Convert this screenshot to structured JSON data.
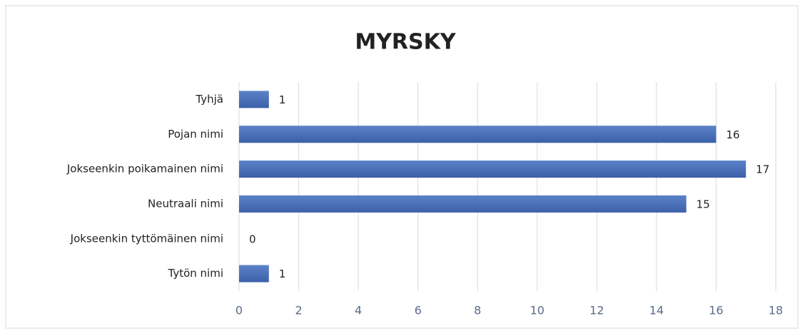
{
  "chart_data": {
    "type": "bar",
    "orientation": "horizontal",
    "title": "MYRSKY",
    "categories": [
      "Tyhjä",
      "Pojan nimi",
      "Jokseenkin poikamainen nimi",
      "Neutraali nimi",
      "Jokseenkin tyttömäinen nimi",
      "Tytön nimi"
    ],
    "values": [
      1,
      16,
      17,
      15,
      0,
      1
    ],
    "color": "#4a6fb8",
    "xlim": [
      0,
      18
    ],
    "xticks": [
      0,
      2,
      4,
      6,
      8,
      10,
      12,
      14,
      16,
      18
    ],
    "grid": true,
    "data_labels": true
  }
}
